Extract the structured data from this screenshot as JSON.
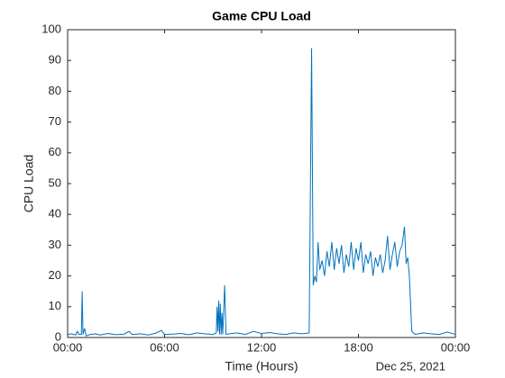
{
  "chart_data": {
    "type": "line",
    "title": "Game CPU Load",
    "xlabel": "Time (Hours)",
    "ylabel": "CPU Load",
    "annotation": "Dec 25, 2021",
    "color": "#0072bd",
    "x": [
      0,
      0.25,
      0.5,
      0.6,
      0.7,
      0.85,
      0.9,
      0.95,
      1.05,
      1.15,
      1.4,
      1.75,
      2,
      2.5,
      3,
      3.5,
      3.8,
      4,
      4.5,
      5,
      5.5,
      5.8,
      6,
      6.5,
      7,
      7.5,
      8,
      8.5,
      9,
      9.2,
      9.25,
      9.3,
      9.35,
      9.4,
      9.45,
      9.5,
      9.55,
      9.6,
      9.72,
      9.8,
      10,
      10.5,
      11,
      11.5,
      12,
      12.5,
      13,
      13.5,
      14,
      14.5,
      14.95,
      15.1,
      15.2,
      15.3,
      15.4,
      15.5,
      15.6,
      15.75,
      15.9,
      16.05,
      16.2,
      16.35,
      16.5,
      16.65,
      16.8,
      16.95,
      17.1,
      17.25,
      17.4,
      17.55,
      17.7,
      17.85,
      18,
      18.15,
      18.3,
      18.45,
      18.6,
      18.75,
      18.9,
      19.05,
      19.2,
      19.35,
      19.5,
      19.65,
      19.8,
      19.95,
      20.1,
      20.25,
      20.4,
      20.55,
      20.7,
      20.85,
      20.95,
      21.05,
      21.15,
      21.3,
      21.5,
      22,
      22.5,
      23,
      23.5,
      24
    ],
    "values": [
      1,
      1.2,
      0.8,
      2,
      1,
      1,
      15,
      1,
      3,
      0.5,
      1,
      1.2,
      0.8,
      1.3,
      0.9,
      1.1,
      2,
      1,
      1.2,
      0.8,
      1.5,
      2.3,
      1,
      1.1,
      1.3,
      0.9,
      1.5,
      1.2,
      1,
      1.5,
      10,
      2,
      12,
      1,
      11,
      1,
      8,
      1,
      17,
      1,
      1.2,
      1.5,
      1,
      2,
      1.3,
      1.6,
      1.2,
      1,
      1.5,
      1.2,
      1.5,
      94,
      17,
      20,
      18,
      31,
      22,
      25,
      20,
      28,
      23,
      31,
      22,
      29,
      24,
      30,
      21,
      27,
      23,
      31,
      22,
      29,
      25,
      31,
      21,
      27,
      24,
      28,
      20,
      26,
      23,
      27,
      21,
      25,
      33,
      22,
      27,
      31,
      23,
      28,
      30,
      36,
      24,
      26,
      20,
      2,
      1,
      1.5,
      1.2,
      1,
      1.8,
      1
    ],
    "xlim": [
      0,
      24
    ],
    "xticks": [
      {
        "value": 0,
        "label": "00:00"
      },
      {
        "value": 6,
        "label": "06:00"
      },
      {
        "value": 12,
        "label": "12:00"
      },
      {
        "value": 18,
        "label": "18:00"
      },
      {
        "value": 24,
        "label": "00:00"
      }
    ],
    "ylim": [
      0,
      100
    ],
    "yticks": [
      0,
      10,
      20,
      30,
      40,
      50,
      60,
      70,
      80,
      90,
      100
    ],
    "grid": false
  }
}
